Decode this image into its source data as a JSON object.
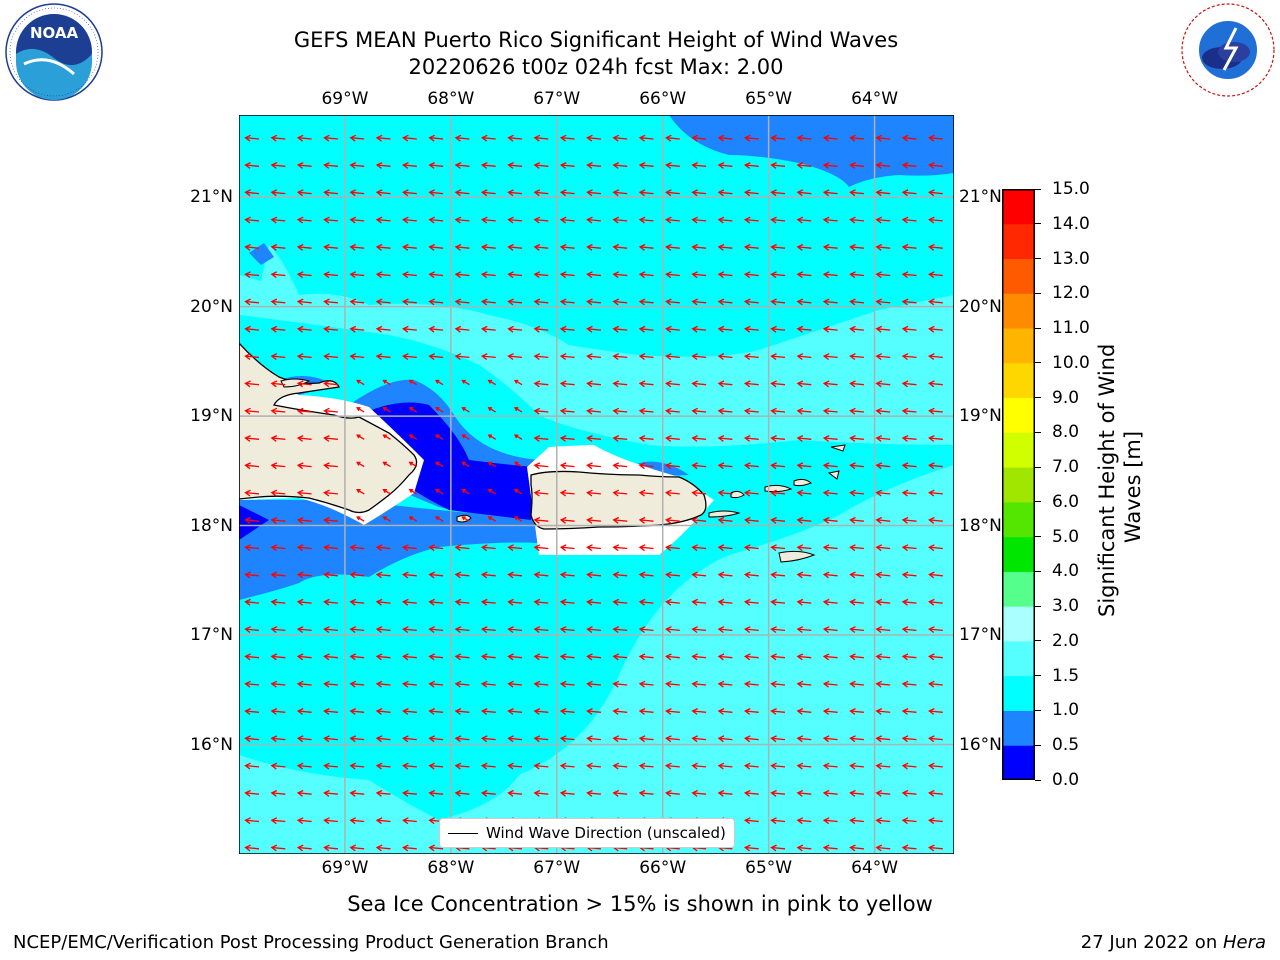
{
  "title": {
    "line1": "GEFS MEAN Puerto Rico Significant Height of Wind Waves",
    "line2": "20220626 t00z 024h fcst   Max: 2.00"
  },
  "logos": {
    "left": {
      "text": "NOAA",
      "ring_text": "NATIONAL OCEANIC AND ATMOSPHERIC ADMINISTRATION · U.S. DEPARTMENT OF COMMERCE"
    },
    "right": {
      "ring_text": "NATIONAL WEATHER SERVICE"
    }
  },
  "map": {
    "lon_labels": [
      "69°W",
      "68°W",
      "67°W",
      "66°W",
      "65°W",
      "64°W"
    ],
    "lat_labels": [
      "21°N",
      "20°N",
      "19°N",
      "18°N",
      "17°N",
      "16°N"
    ],
    "lon_values": [
      -69,
      -68,
      -67,
      -66,
      -65,
      -64
    ],
    "lat_values": [
      21,
      20,
      19,
      18,
      17,
      16
    ],
    "lon_range": [
      -70.0,
      -63.25
    ],
    "lat_range": [
      15.0,
      21.75
    ],
    "legend_label": "Wind Wave Direction (unscaled)",
    "arrow_color": "#ff0000",
    "land_color": "#efecdc",
    "grid_color": "#b0b0b0"
  },
  "colorbar": {
    "label_line1": "Significant Height of Wind",
    "label_line2": "Waves [m]",
    "ticks": [
      "15.0",
      "14.0",
      "13.0",
      "12.0",
      "11.0",
      "10.0",
      "9.0",
      "8.0",
      "7.0",
      "6.0",
      "5.0",
      "4.0",
      "3.0",
      "2.0",
      "1.5",
      "1.0",
      "0.5",
      "0.0"
    ],
    "levels": [
      0.0,
      0.5,
      1.0,
      1.5,
      2.0,
      3.0,
      4.0,
      5.0,
      6.0,
      7.0,
      8.0,
      9.0,
      10.0,
      11.0,
      12.0,
      13.0,
      14.0,
      15.0
    ],
    "colors": [
      "#0000ff",
      "#1e84ff",
      "#00ffff",
      "#55ffff",
      "#aaffff",
      "#55ff8c",
      "#00e600",
      "#55e600",
      "#a0e600",
      "#d2ff00",
      "#ffff00",
      "#ffd700",
      "#ffb400",
      "#ff8c00",
      "#ff5a00",
      "#ff2800",
      "#ff0000"
    ]
  },
  "caption": "Sea Ice Concentration > 15% is shown in pink to yellow",
  "footer": {
    "left": "NCEP/EMC/Verification Post Processing Product Generation Branch",
    "right_date": "27 Jun 2022 on ",
    "right_host": "Hera"
  }
}
